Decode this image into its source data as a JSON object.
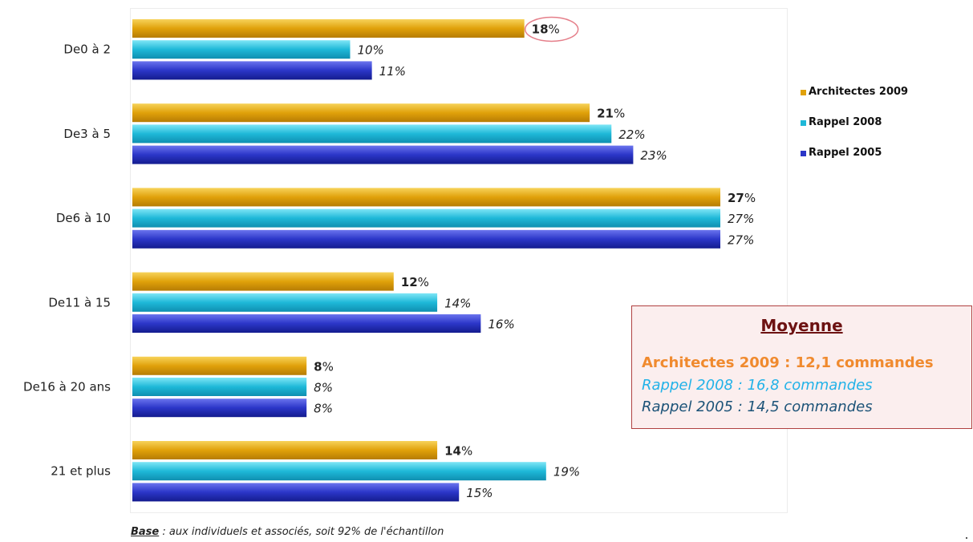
{
  "chart_data": {
    "type": "bar",
    "orientation": "horizontal",
    "categories": [
      "De0 à 2",
      "De3 à 5",
      "De6 à 10",
      "De11 à 15",
      "De16 à 20 ans",
      "21 et plus"
    ],
    "series": [
      {
        "name": "Architectes 2009",
        "values": [
          18,
          21,
          27,
          12,
          8,
          14
        ],
        "color": "#e0a10a",
        "label_style": "bold"
      },
      {
        "name": "Rappel 2008",
        "values": [
          10,
          22,
          27,
          14,
          8,
          19
        ],
        "color": "#1eb8d8",
        "label_style": "italic"
      },
      {
        "name": "Rappel 2005",
        "values": [
          11,
          23,
          27,
          16,
          8,
          15
        ],
        "color": "#2b36c8",
        "label_style": "italic"
      }
    ],
    "value_suffix": "%",
    "xlim": [
      0,
      30
    ],
    "legend_position": "right",
    "highlight": {
      "series": 0,
      "category": 0
    },
    "grid": false
  },
  "moyenne": {
    "title": "Moyenne",
    "lines": [
      "Architectes 2009 : 12,1 commandes",
      "Rappel 2008 : 16,8 commandes",
      "Rappel 2005 : 14,5 commandes"
    ]
  },
  "footnote": {
    "bold_part": "Base",
    "rest": " : aux individuels  et associés, soit 92% de l'échantillon"
  }
}
